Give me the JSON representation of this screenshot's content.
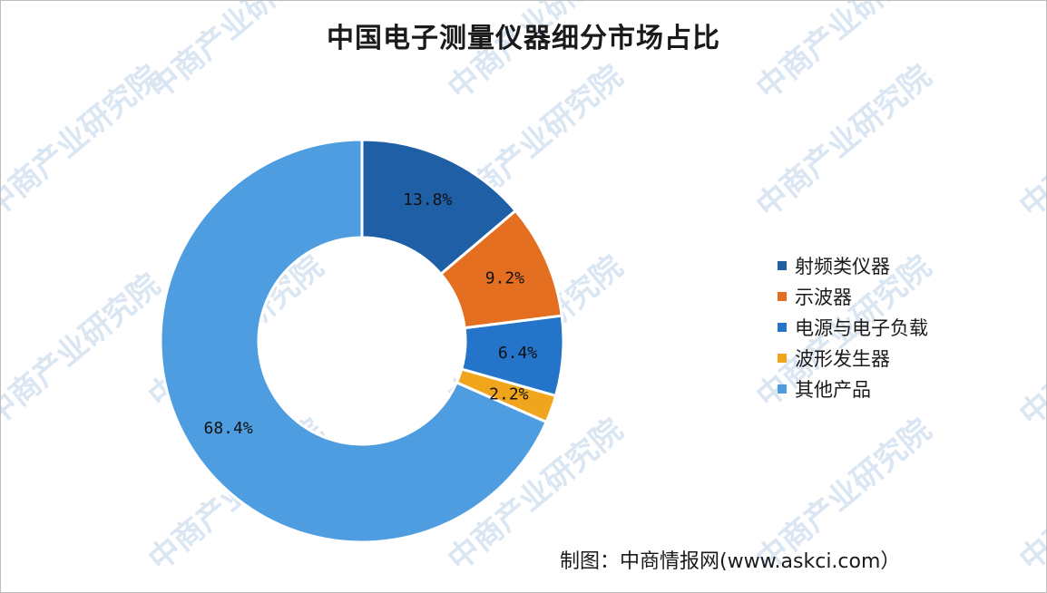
{
  "colors": {
    "rf": "#1f5fa6",
    "osc": "#e46f21",
    "power": "#2475c9",
    "gen": "#f0a51c",
    "other": "#4d9de0",
    "watermark": "#dbe6f3"
  },
  "watermark": {
    "text": "中商产业研究院"
  },
  "chart_data": {
    "type": "pie",
    "subtype": "donut",
    "title": "中国电子测量仪器细分市场占比",
    "start": "12 o'clock, clockwise",
    "legend_position": "right",
    "categories": [
      "射频类仪器",
      "示波器",
      "电源与电子负载",
      "波形发生器",
      "其他产品"
    ],
    "values": [
      13.8,
      9.2,
      6.4,
      2.2,
      68.4
    ],
    "labels": [
      "13.8%",
      "9.2%",
      "6.4%",
      "2.2%",
      "68.4%"
    ],
    "colors": [
      "#1f5fa6",
      "#e46f21",
      "#2475c9",
      "#f0a51c",
      "#4d9de0"
    ]
  },
  "source": "制图：中商情报网(www.askci.com）"
}
